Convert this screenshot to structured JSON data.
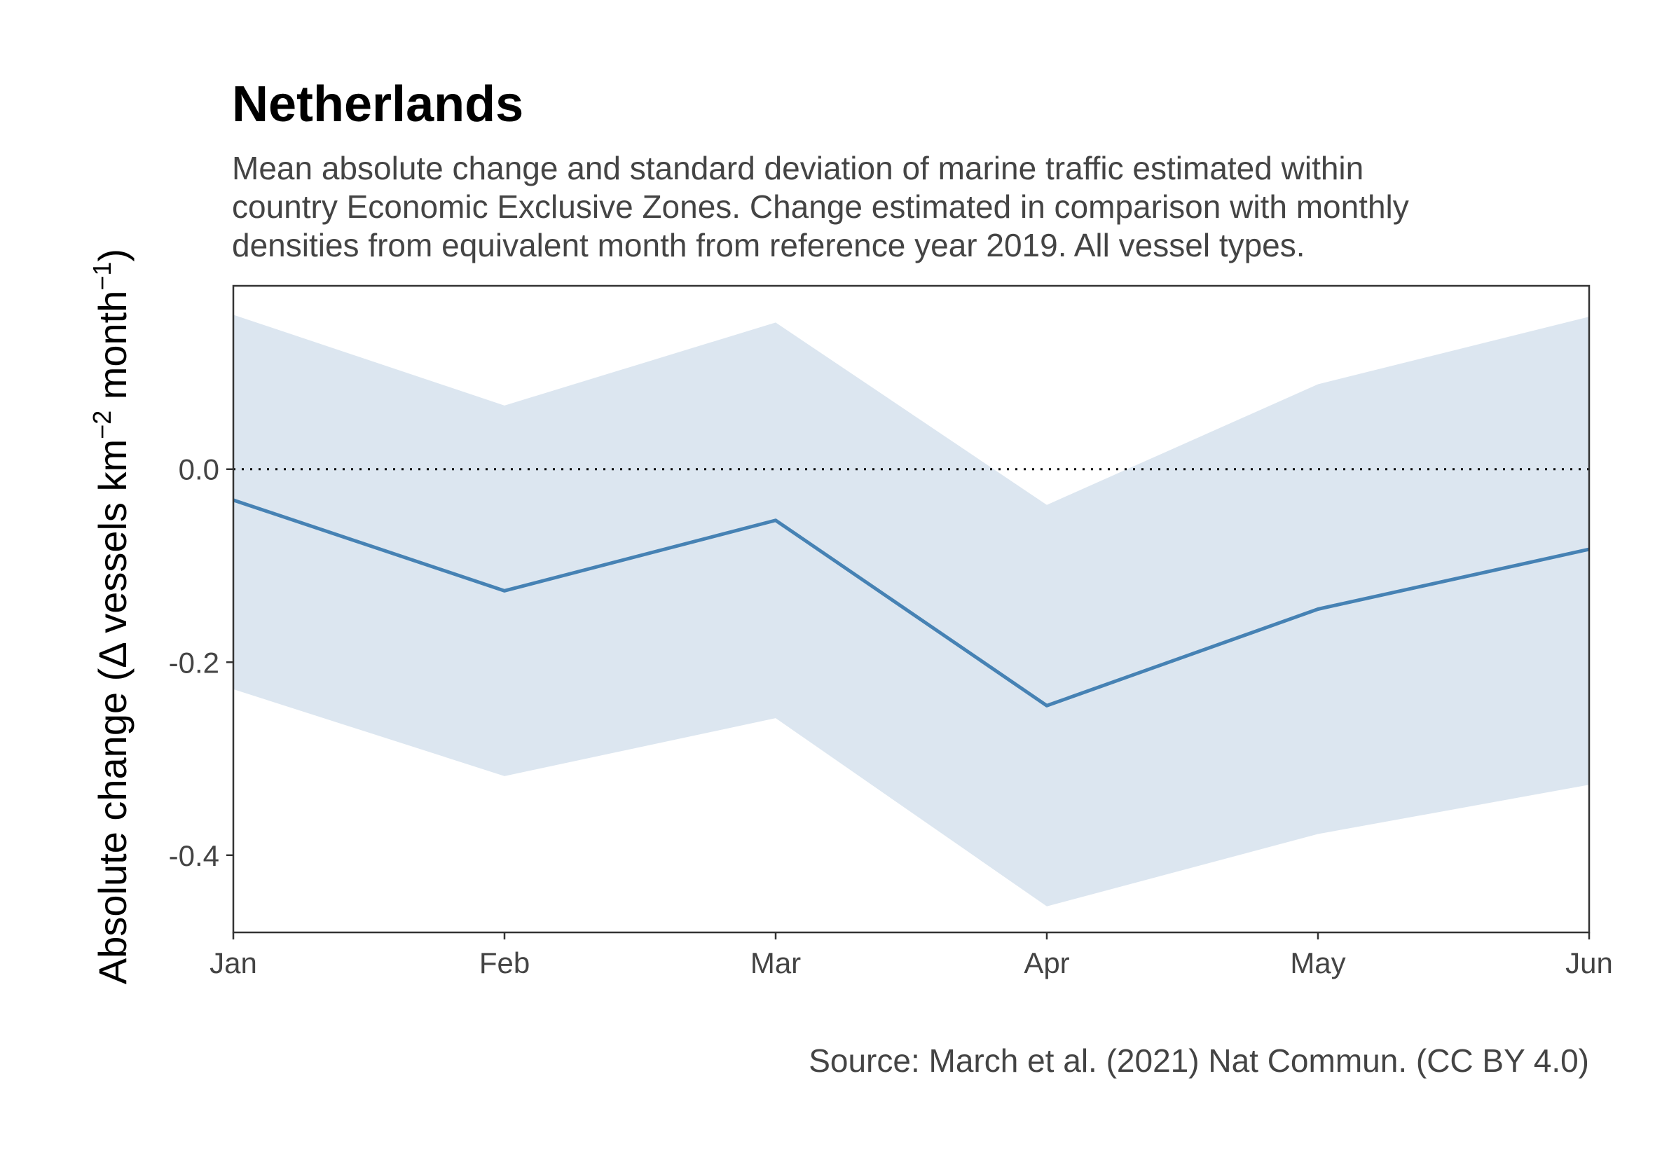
{
  "chart_data": {
    "type": "line",
    "title": "Netherlands",
    "subtitle_lines": [
      "Mean absolute change and standard deviation of marine traffic estimated within",
      "country Economic Exclusive Zones. Change estimated in comparison with monthly",
      "densities from equivalent month from reference year 2019. All vessel types."
    ],
    "ylabel": {
      "before": "Absolute change (Δ vessels km",
      "sup1": "−2",
      "middle": " month",
      "sup2": "−1",
      "after": ")"
    },
    "categories": [
      "Jan",
      "Feb",
      "Mar",
      "Apr",
      "May",
      "Jun"
    ],
    "series": [
      {
        "mean": [
          -0.032,
          -0.126,
          -0.053,
          -0.245,
          -0.145,
          -0.083
        ],
        "lower": [
          -0.228,
          -0.318,
          -0.258,
          -0.453,
          -0.378,
          -0.327
        ],
        "upper": [
          0.16,
          0.066,
          0.152,
          -0.037,
          0.088,
          0.158
        ],
        "line_color": "#4682B4",
        "band_color": "#DCE6F0"
      }
    ],
    "yticks": [
      "0.0",
      "-0.2",
      "-0.4"
    ],
    "ytick_values": [
      0.0,
      -0.2,
      -0.4
    ],
    "ylim": [
      -0.48,
      0.19
    ],
    "reference_line": 0,
    "grid": false,
    "caption": "Source: March et al. (2021) Nat Commun. (CC BY 4.0)"
  }
}
